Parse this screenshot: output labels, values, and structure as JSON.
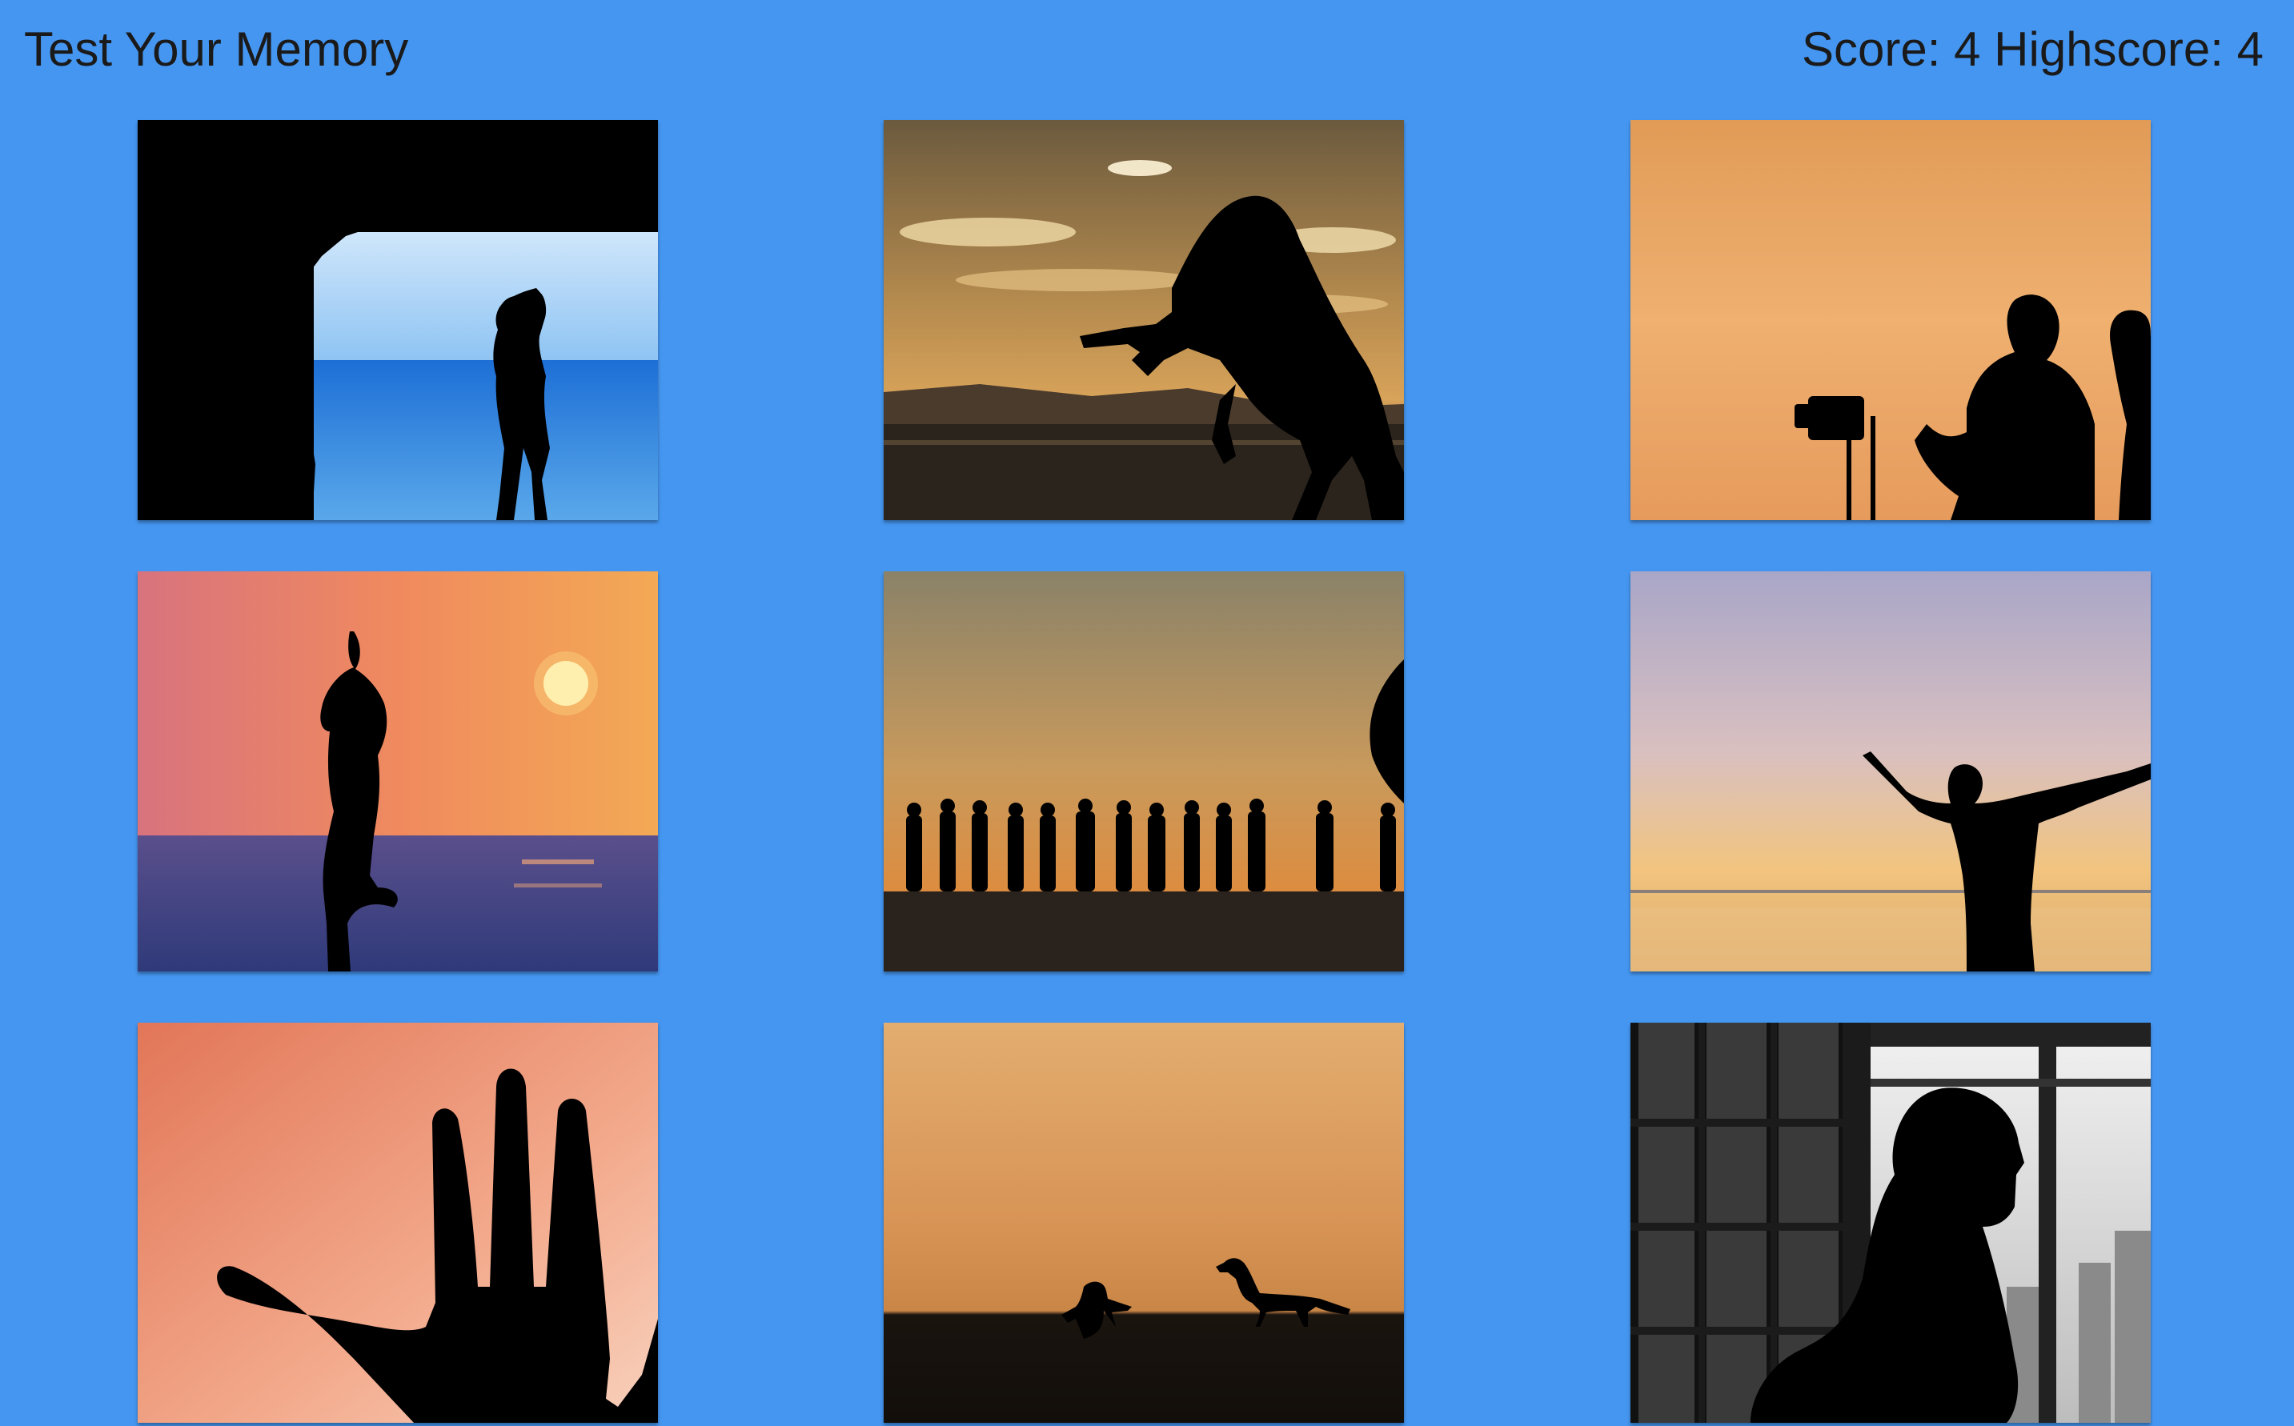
{
  "app": {
    "title": "Test Your Memory"
  },
  "score": {
    "label": "Score:",
    "value": "4",
    "highscore_label": "Highscore:",
    "highscore_value": "4"
  },
  "colors": {
    "background": "#4596f1",
    "text": "#1a1a1a"
  },
  "cards": [
    {
      "subject": "woman silhouette in sea cave arch"
    },
    {
      "subject": "rearing horse silhouette at sunset"
    },
    {
      "subject": "photographer silhouettes on orange sky"
    },
    {
      "subject": "yoga tree pose silhouette at sunset sea"
    },
    {
      "subject": "soldiers silhouettes at dusk"
    },
    {
      "subject": "man with open arms at sunset"
    },
    {
      "subject": "hand silhouette on pink background"
    },
    {
      "subject": "person crouching with dog at sunset"
    },
    {
      "subject": "man silhouette by bookshelf and window"
    }
  ]
}
